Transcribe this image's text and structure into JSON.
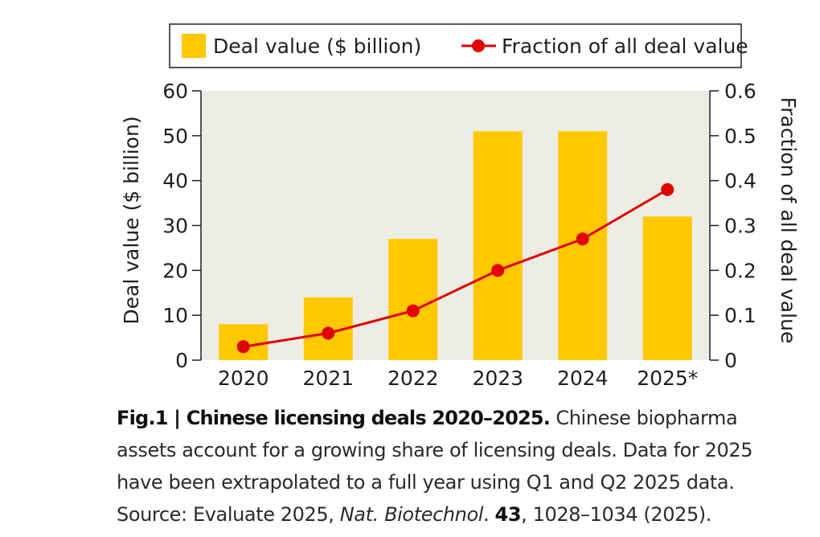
{
  "chart_data": {
    "type": "bar",
    "categories": [
      "2020",
      "2021",
      "2022",
      "2023",
      "2024",
      "2025*"
    ],
    "series": [
      {
        "name": "Deal value ($ billion)",
        "type": "bar",
        "axis": "left",
        "values": [
          8,
          14,
          27,
          51,
          51,
          32
        ]
      },
      {
        "name": "Fraction of all deal value",
        "type": "line",
        "axis": "right",
        "values": [
          0.03,
          0.06,
          0.11,
          0.2,
          0.27,
          0.38
        ]
      }
    ],
    "ylabel": "Deal value ($ billion)",
    "ylabel_right": "Fraction of all deal value",
    "ylim": [
      0,
      60
    ],
    "ylim_right": [
      0,
      0.6
    ],
    "yticks": [
      "0",
      "10",
      "20",
      "30",
      "40",
      "50",
      "60"
    ],
    "yticks_right": [
      "0",
      "0.1",
      "0.2",
      "0.3",
      "0.4",
      "0.5",
      "0.6"
    ],
    "legend_placement": "top",
    "colors": {
      "bar": "#FFC800",
      "line": "#E00000",
      "plot_bg": "#EDEDE5"
    }
  },
  "caption": {
    "title": "Fig.1 | Chinese licensing deals 2020–2025.",
    "text1": " Chinese biopharma assets account for a growing share of licensing deals. Data for 2025 have been extrapolated to a full year using Q1 and Q2 2025 data. Source: Evaluate 2025, ",
    "journal": "Nat. Biotechnol",
    "text2": ". ",
    "volume": "43",
    "text3": ", 1028–1034 (2025)."
  }
}
